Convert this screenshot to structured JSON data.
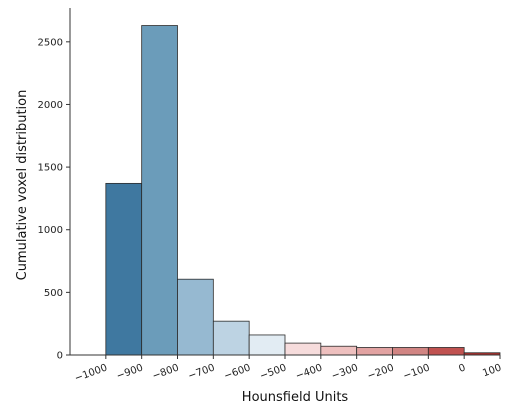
{
  "chart_data": {
    "type": "bar",
    "title": "",
    "xlabel": "Hounsfield Units",
    "ylabel": "Cumulative voxel distribution",
    "bins": [
      {
        "from": -1000,
        "to": -900,
        "value": 1370,
        "color": "#3f78a0"
      },
      {
        "from": -900,
        "to": -800,
        "value": 2630,
        "color": "#6b9cba"
      },
      {
        "from": -800,
        "to": -700,
        "value": 605,
        "color": "#96b9d1"
      },
      {
        "from": -700,
        "to": -600,
        "value": 270,
        "color": "#bdd3e3"
      },
      {
        "from": -600,
        "to": -500,
        "value": 160,
        "color": "#e2ecf3"
      },
      {
        "from": -500,
        "to": -400,
        "value": 95,
        "color": "#f6dcdc"
      },
      {
        "from": -400,
        "to": -300,
        "value": 70,
        "color": "#eec0bf"
      },
      {
        "from": -300,
        "to": -200,
        "value": 60,
        "color": "#e2a3a2"
      },
      {
        "from": -200,
        "to": -100,
        "value": 60,
        "color": "#d18583"
      },
      {
        "from": -100,
        "to": 0,
        "value": 60,
        "color": "#c05250"
      },
      {
        "from": 0,
        "to": 100,
        "value": 18,
        "color": "#a8302d"
      }
    ],
    "x_ticks": [
      -1000,
      -900,
      -800,
      -700,
      -600,
      -500,
      -400,
      -300,
      -200,
      -100,
      0,
      100
    ],
    "x_tick_labels": [
      "−1000",
      "−900",
      "−800",
      "−700",
      "−600",
      "−500",
      "−400",
      "−300",
      "−200",
      "−100",
      "0",
      "100"
    ],
    "y_ticks": [
      0,
      500,
      1000,
      1500,
      2000,
      2500
    ],
    "y_tick_labels": [
      "0",
      "500",
      "1000",
      "1500",
      "2000",
      "2500"
    ],
    "xlim": [
      -1100,
      100
    ],
    "ylim": [
      0,
      2770
    ],
    "grid": false,
    "legend": "none",
    "edge_color": "#2b2b2b",
    "axis_color": "#333333"
  }
}
